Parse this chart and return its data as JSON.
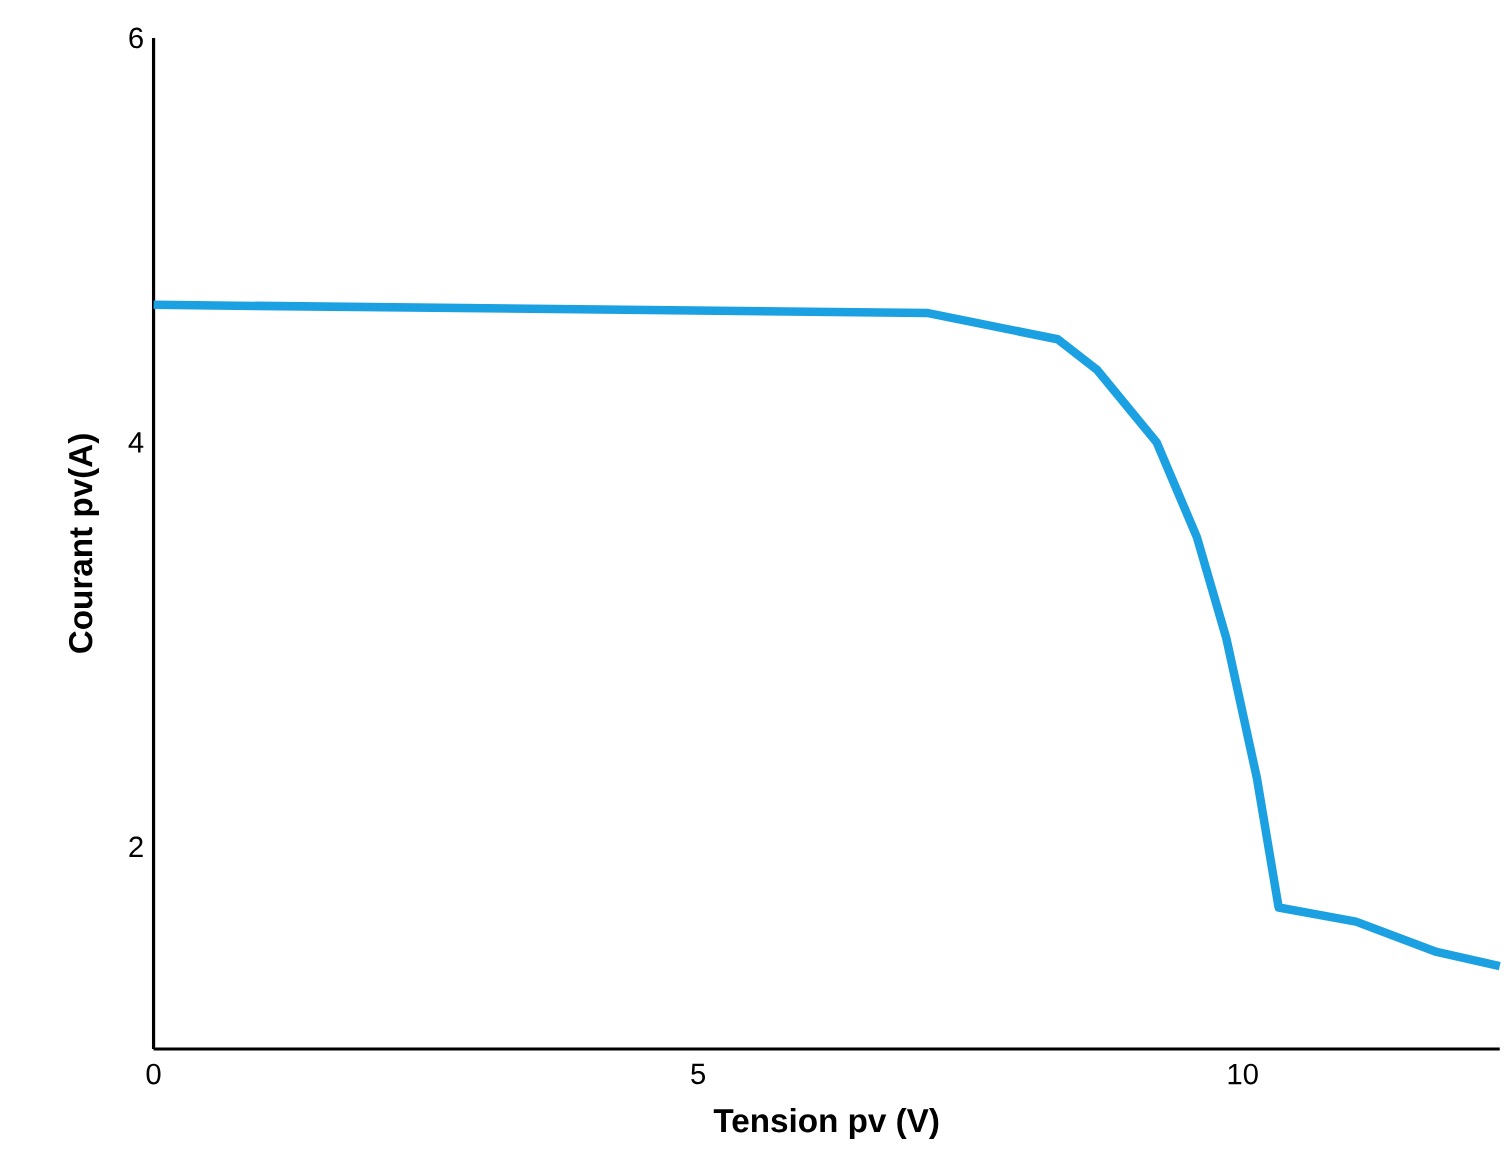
{
  "chart_data": {
    "type": "line",
    "xlabel": "Tension pv (V)",
    "ylabel": "Courant pv(A)",
    "x": [
      0,
      7.1,
      8.3,
      8.66,
      9.21,
      9.58,
      9.85,
      10.13,
      10.33,
      11.04,
      11.78,
      12.36
    ],
    "series": [
      {
        "color": "#1ba1e2",
        "values": [
          4.68,
          4.64,
          4.51,
          4.36,
          4.0,
          3.53,
          3.03,
          2.34,
          1.7,
          1.63,
          1.48,
          1.41
        ]
      }
    ],
    "xlim": [
      0,
      12.36
    ],
    "ylim": [
      1,
      6
    ],
    "xticks": [
      0,
      5,
      10
    ],
    "yticks": [
      2,
      4,
      6
    ],
    "grid": false,
    "marker": "none",
    "line_style": "solid"
  }
}
